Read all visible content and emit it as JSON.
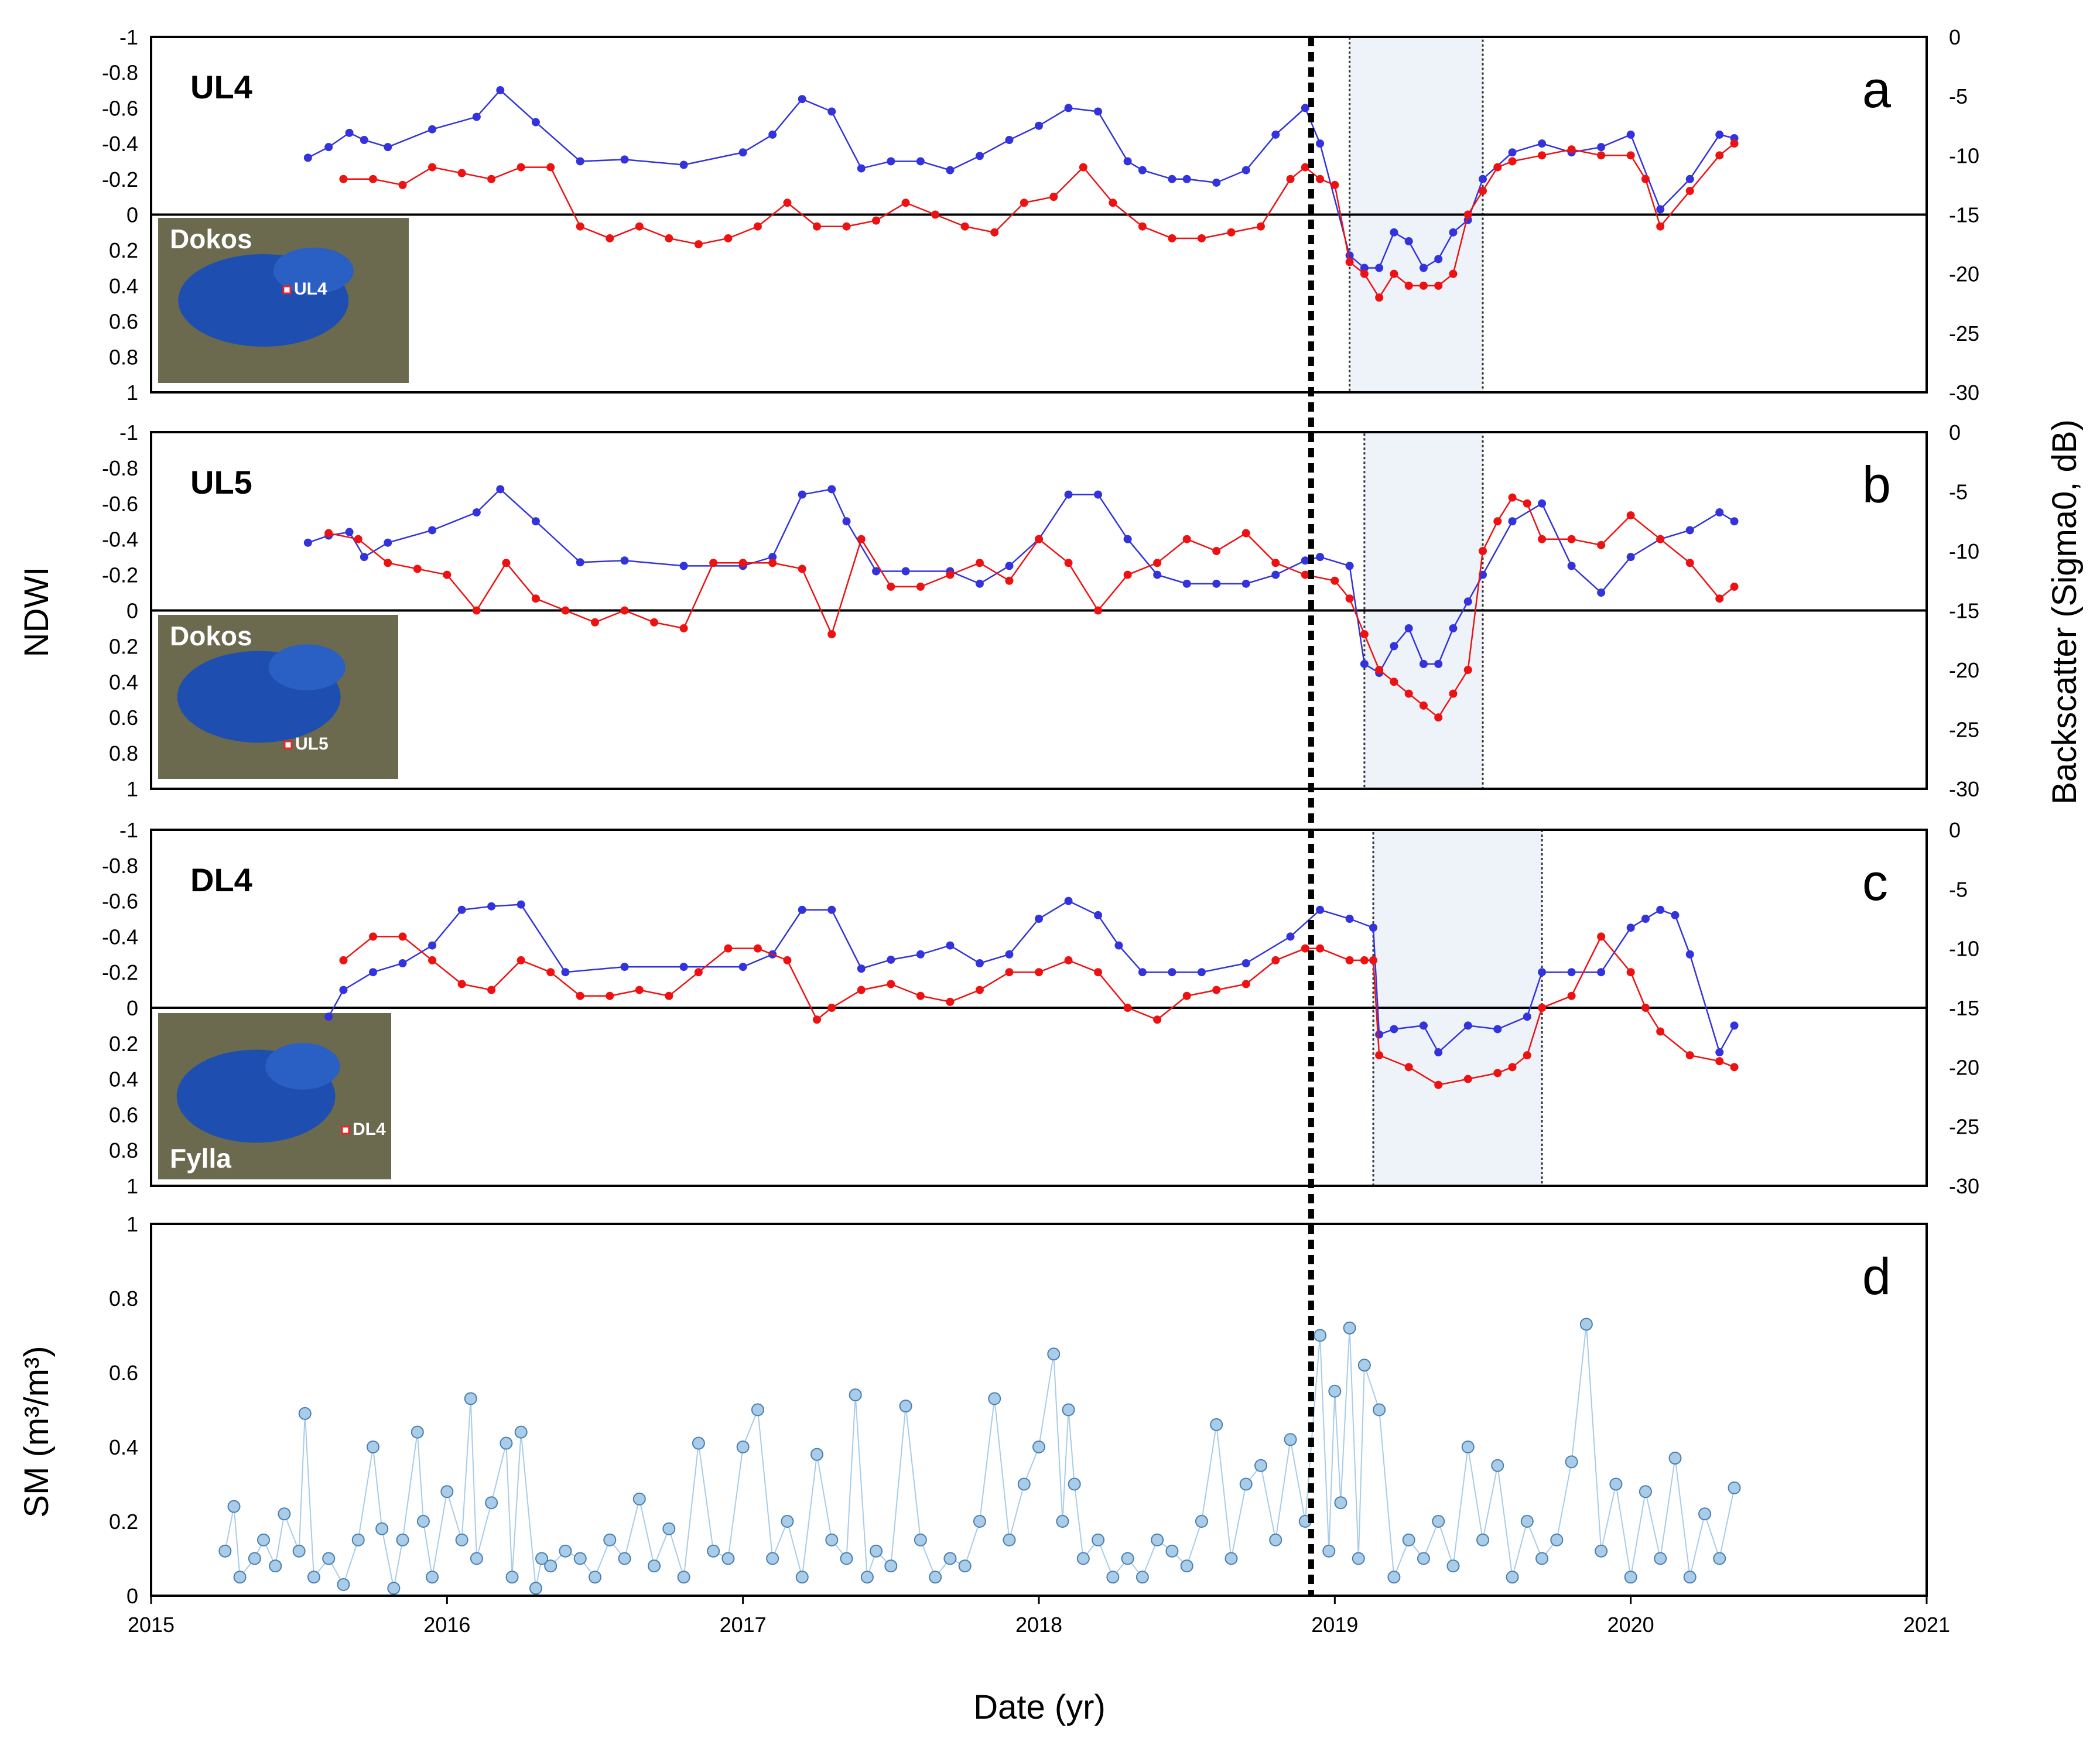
{
  "colors": {
    "ndwi": "#3333dd",
    "backscatter": "#ee1111",
    "sm": "#a9cce8",
    "sm_edge": "#4a7fb0",
    "shade": "#eef3f9"
  },
  "chart_data": [
    {
      "type": "line",
      "panel": "a",
      "site_label": "UL4",
      "inset_label": "Dokos",
      "inset_point": "UL4",
      "ylabel": "NDWI",
      "ylim_inverted": [
        -1,
        1
      ],
      "y2label": "Backscatter (Sigma0, dB)",
      "y2lim": [
        -30,
        0
      ],
      "yticks": [
        "-1",
        "-0.8",
        "-0.6",
        "-0.4",
        "-0.2",
        "0",
        "0.2",
        "0.4",
        "0.6",
        "0.8",
        "1"
      ],
      "y2ticks": [
        "0",
        "-5",
        "-10",
        "-15",
        "-20",
        "-25",
        "-30"
      ],
      "xlim": [
        2015,
        2021
      ],
      "shaded_period": [
        2019.05,
        2019.5
      ],
      "series": [
        {
          "name": "NDWI",
          "axis": "left",
          "x": [
            2015.53,
            2015.6,
            2015.67,
            2015.72,
            2015.8,
            2015.95,
            2016.1,
            2016.18,
            2016.3,
            2016.45,
            2016.6,
            2016.8,
            2017.0,
            2017.1,
            2017.2,
            2017.3,
            2017.4,
            2017.5,
            2017.6,
            2017.7,
            2017.8,
            2017.9,
            2018.0,
            2018.1,
            2018.2,
            2018.3,
            2018.35,
            2018.45,
            2018.5,
            2018.6,
            2018.7,
            2018.8,
            2018.9,
            2018.95,
            2019.05,
            2019.1,
            2019.15,
            2019.2,
            2019.25,
            2019.3,
            2019.35,
            2019.4,
            2019.45,
            2019.5,
            2019.6,
            2019.7,
            2019.8,
            2019.9,
            2020.0,
            2020.1,
            2020.2,
            2020.3,
            2020.35
          ],
          "y": [
            -0.32,
            -0.38,
            -0.46,
            -0.42,
            -0.38,
            -0.48,
            -0.55,
            -0.7,
            -0.52,
            -0.3,
            -0.31,
            -0.28,
            -0.35,
            -0.45,
            -0.65,
            -0.58,
            -0.26,
            -0.3,
            -0.3,
            -0.25,
            -0.33,
            -0.42,
            -0.5,
            -0.6,
            -0.58,
            -0.3,
            -0.25,
            -0.2,
            -0.2,
            -0.18,
            -0.25,
            -0.45,
            -0.6,
            -0.4,
            0.23,
            0.3,
            0.3,
            0.1,
            0.15,
            0.3,
            0.25,
            0.1,
            0.03,
            -0.2,
            -0.35,
            -0.4,
            -0.35,
            -0.38,
            -0.45,
            -0.03,
            -0.2,
            -0.45,
            -0.43
          ]
        },
        {
          "name": "Backscatter",
          "axis": "right",
          "x": [
            2015.65,
            2015.75,
            2015.85,
            2015.95,
            2016.05,
            2016.15,
            2016.25,
            2016.35,
            2016.45,
            2016.55,
            2016.65,
            2016.75,
            2016.85,
            2016.95,
            2017.05,
            2017.15,
            2017.25,
            2017.35,
            2017.45,
            2017.55,
            2017.65,
            2017.75,
            2017.85,
            2017.95,
            2018.05,
            2018.15,
            2018.25,
            2018.35,
            2018.45,
            2018.55,
            2018.65,
            2018.75,
            2018.85,
            2018.9,
            2018.95,
            2019.0,
            2019.05,
            2019.1,
            2019.15,
            2019.2,
            2019.25,
            2019.3,
            2019.35,
            2019.4,
            2019.45,
            2019.5,
            2019.55,
            2019.6,
            2019.7,
            2019.8,
            2019.9,
            2020.0,
            2020.05,
            2020.1,
            2020.2,
            2020.3,
            2020.35
          ],
          "y": [
            -12,
            -12,
            -12.5,
            -11,
            -11.5,
            -12,
            -11,
            -11,
            -16,
            -17,
            -16,
            -17,
            -17.5,
            -17,
            -16,
            -14,
            -16,
            -16,
            -15.5,
            -14,
            -15,
            -16,
            -16.5,
            -14,
            -13.5,
            -11,
            -14,
            -16,
            -17,
            -17,
            -16.5,
            -16,
            -12,
            -11,
            -12,
            -12.5,
            -19,
            -20,
            -22,
            -20,
            -21,
            -21,
            -21,
            -20,
            -15,
            -13,
            -11,
            -10.5,
            -10,
            -9.5,
            -10,
            -10,
            -12,
            -16,
            -13,
            -10,
            -9
          ]
        }
      ]
    },
    {
      "type": "line",
      "panel": "b",
      "site_label": "UL5",
      "inset_label": "Dokos",
      "inset_point": "UL5",
      "ylabel": "NDWI",
      "ylim_inverted": [
        -1,
        1
      ],
      "y2lim": [
        -30,
        0
      ],
      "yticks": [
        "-1",
        "-0.8",
        "-0.6",
        "-0.4",
        "-0.2",
        "0",
        "0.2",
        "0.4",
        "0.6",
        "0.8",
        "1"
      ],
      "y2ticks": [
        "0",
        "-5",
        "-10",
        "-15",
        "-20",
        "-25",
        "-30"
      ],
      "xlim": [
        2015,
        2021
      ],
      "shaded_period": [
        2019.1,
        2019.5
      ],
      "series": [
        {
          "name": "NDWI",
          "axis": "left",
          "x": [
            2015.53,
            2015.6,
            2015.67,
            2015.72,
            2015.8,
            2015.95,
            2016.1,
            2016.18,
            2016.3,
            2016.45,
            2016.6,
            2016.8,
            2017.0,
            2017.1,
            2017.2,
            2017.3,
            2017.35,
            2017.45,
            2017.55,
            2017.7,
            2017.8,
            2017.9,
            2018.0,
            2018.1,
            2018.2,
            2018.3,
            2018.4,
            2018.5,
            2018.6,
            2018.7,
            2018.8,
            2018.9,
            2018.95,
            2019.05,
            2019.1,
            2019.15,
            2019.2,
            2019.25,
            2019.3,
            2019.35,
            2019.4,
            2019.45,
            2019.5,
            2019.6,
            2019.7,
            2019.8,
            2019.9,
            2020.0,
            2020.1,
            2020.2,
            2020.3,
            2020.35
          ],
          "y": [
            -0.38,
            -0.42,
            -0.44,
            -0.3,
            -0.38,
            -0.45,
            -0.55,
            -0.68,
            -0.5,
            -0.27,
            -0.28,
            -0.25,
            -0.25,
            -0.3,
            -0.65,
            -0.68,
            -0.5,
            -0.22,
            -0.22,
            -0.22,
            -0.15,
            -0.25,
            -0.4,
            -0.65,
            -0.65,
            -0.4,
            -0.2,
            -0.15,
            -0.15,
            -0.15,
            -0.2,
            -0.28,
            -0.3,
            -0.25,
            0.3,
            0.35,
            0.2,
            0.1,
            0.3,
            0.3,
            0.1,
            -0.05,
            -0.2,
            -0.5,
            -0.6,
            -0.25,
            -0.1,
            -0.3,
            -0.4,
            -0.45,
            -0.55,
            -0.5
          ]
        },
        {
          "name": "Backscatter",
          "axis": "right",
          "x": [
            2015.6,
            2015.7,
            2015.8,
            2015.9,
            2016.0,
            2016.1,
            2016.2,
            2016.3,
            2016.4,
            2016.5,
            2016.6,
            2016.7,
            2016.8,
            2016.9,
            2017.0,
            2017.1,
            2017.2,
            2017.3,
            2017.4,
            2017.5,
            2017.6,
            2017.7,
            2017.8,
            2017.9,
            2018.0,
            2018.1,
            2018.2,
            2018.3,
            2018.4,
            2018.5,
            2018.6,
            2018.7,
            2018.8,
            2018.9,
            2019.0,
            2019.05,
            2019.1,
            2019.15,
            2019.2,
            2019.25,
            2019.3,
            2019.35,
            2019.4,
            2019.45,
            2019.5,
            2019.55,
            2019.6,
            2019.65,
            2019.7,
            2019.8,
            2019.9,
            2020.0,
            2020.1,
            2020.2,
            2020.3,
            2020.35
          ],
          "y": [
            -8.5,
            -9,
            -11,
            -11.5,
            -12,
            -15,
            -11,
            -14,
            -15,
            -16,
            -15,
            -16,
            -16.5,
            -11,
            -11,
            -11,
            -11.5,
            -17,
            -9,
            -13,
            -13,
            -12,
            -11,
            -12.5,
            -9,
            -11,
            -15,
            -12,
            -11,
            -9,
            -10,
            -8.5,
            -11,
            -12,
            -12.5,
            -14,
            -17,
            -20,
            -21,
            -22,
            -23,
            -24,
            -22,
            -20,
            -10,
            -7.5,
            -5.5,
            -6,
            -9,
            -9,
            -9.5,
            -7,
            -9,
            -11,
            -14,
            -13
          ]
        }
      ]
    },
    {
      "type": "line",
      "panel": "c",
      "site_label": "DL4",
      "inset_label": "Fylla",
      "inset_point": "DL4",
      "ylabel": "NDWI",
      "ylim_inverted": [
        -1,
        1
      ],
      "y2lim": [
        -30,
        0
      ],
      "yticks": [
        "-1",
        "-0.8",
        "-0.6",
        "-0.4",
        "-0.2",
        "0",
        "0.2",
        "0.4",
        "0.6",
        "0.8",
        "1"
      ],
      "y2ticks": [
        "0",
        "-5",
        "-10",
        "-15",
        "-20",
        "-25",
        "-30"
      ],
      "xlim": [
        2015,
        2021
      ],
      "shaded_period": [
        2019.13,
        2019.7
      ],
      "series": [
        {
          "name": "NDWI",
          "axis": "left",
          "x": [
            2015.6,
            2015.65,
            2015.75,
            2015.85,
            2015.95,
            2016.05,
            2016.15,
            2016.25,
            2016.4,
            2016.6,
            2016.8,
            2017.0,
            2017.1,
            2017.2,
            2017.3,
            2017.4,
            2017.5,
            2017.6,
            2017.7,
            2017.8,
            2017.9,
            2018.0,
            2018.1,
            2018.2,
            2018.27,
            2018.35,
            2018.45,
            2018.55,
            2018.7,
            2018.85,
            2018.95,
            2019.05,
            2019.13,
            2019.15,
            2019.2,
            2019.3,
            2019.35,
            2019.45,
            2019.55,
            2019.65,
            2019.7,
            2019.8,
            2019.9,
            2020.0,
            2020.05,
            2020.1,
            2020.15,
            2020.2,
            2020.3,
            2020.35
          ],
          "y": [
            0.05,
            -0.1,
            -0.2,
            -0.25,
            -0.35,
            -0.55,
            -0.57,
            -0.58,
            -0.2,
            -0.23,
            -0.23,
            -0.23,
            -0.3,
            -0.55,
            -0.55,
            -0.22,
            -0.27,
            -0.3,
            -0.35,
            -0.25,
            -0.3,
            -0.5,
            -0.6,
            -0.52,
            -0.35,
            -0.2,
            -0.2,
            -0.2,
            -0.25,
            -0.4,
            -0.55,
            -0.5,
            -0.45,
            0.15,
            0.12,
            0.1,
            0.25,
            0.1,
            0.12,
            0.05,
            -0.2,
            -0.2,
            -0.2,
            -0.45,
            -0.5,
            -0.55,
            -0.52,
            -0.3,
            0.25,
            0.1
          ]
        },
        {
          "name": "Backscatter",
          "axis": "right",
          "x": [
            2015.65,
            2015.75,
            2015.85,
            2015.95,
            2016.05,
            2016.15,
            2016.25,
            2016.35,
            2016.45,
            2016.55,
            2016.65,
            2016.75,
            2016.85,
            2016.95,
            2017.05,
            2017.15,
            2017.25,
            2017.3,
            2017.4,
            2017.5,
            2017.6,
            2017.7,
            2017.8,
            2017.9,
            2018.0,
            2018.1,
            2018.2,
            2018.3,
            2018.4,
            2018.5,
            2018.6,
            2018.7,
            2018.8,
            2018.9,
            2018.95,
            2019.05,
            2019.1,
            2019.13,
            2019.15,
            2019.25,
            2019.35,
            2019.45,
            2019.55,
            2019.6,
            2019.65,
            2019.7,
            2019.8,
            2019.9,
            2020.0,
            2020.05,
            2020.1,
            2020.2,
            2020.3,
            2020.35
          ],
          "y": [
            -11,
            -9,
            -9,
            -11,
            -13,
            -13.5,
            -11,
            -12,
            -14,
            -14,
            -13.5,
            -14,
            -12,
            -10,
            -10,
            -11,
            -16,
            -15,
            -13.5,
            -13,
            -14,
            -14.5,
            -13.5,
            -12,
            -12,
            -11,
            -12,
            -15,
            -16,
            -14,
            -13.5,
            -13,
            -11,
            -10,
            -10,
            -11,
            -11,
            -11,
            -19,
            -20,
            -21.5,
            -21,
            -20.5,
            -20,
            -19,
            -15,
            -14,
            -9,
            -12,
            -15,
            -17,
            -19,
            -19.5,
            -20
          ]
        }
      ]
    },
    {
      "type": "scatter",
      "panel": "d",
      "ylabel": "SM (m³/m³)",
      "xlabel": "Date (yr)",
      "ylim": [
        0,
        1
      ],
      "yticks": [
        "0",
        "0.2",
        "0.4",
        "0.6",
        "0.8",
        "1"
      ],
      "xlim": [
        2015,
        2021
      ],
      "xticks": [
        "2015",
        "2016",
        "2017",
        "2018",
        "2019",
        "2020",
        "2021"
      ],
      "x": [
        2015.25,
        2015.28,
        2015.3,
        2015.35,
        2015.38,
        2015.42,
        2015.45,
        2015.5,
        2015.52,
        2015.55,
        2015.6,
        2015.65,
        2015.7,
        2015.75,
        2015.78,
        2015.82,
        2015.85,
        2015.9,
        2015.92,
        2015.95,
        2016.0,
        2016.05,
        2016.08,
        2016.1,
        2016.15,
        2016.2,
        2016.22,
        2016.25,
        2016.3,
        2016.32,
        2016.35,
        2016.4,
        2016.45,
        2016.5,
        2016.55,
        2016.6,
        2016.65,
        2016.7,
        2016.75,
        2016.8,
        2016.85,
        2016.9,
        2016.95,
        2017.0,
        2017.05,
        2017.1,
        2017.15,
        2017.2,
        2017.25,
        2017.3,
        2017.35,
        2017.38,
        2017.42,
        2017.45,
        2017.5,
        2017.55,
        2017.6,
        2017.65,
        2017.7,
        2017.75,
        2017.8,
        2017.85,
        2017.9,
        2017.95,
        2018.0,
        2018.05,
        2018.08,
        2018.1,
        2018.12,
        2018.15,
        2018.2,
        2018.25,
        2018.3,
        2018.35,
        2018.4,
        2018.45,
        2018.5,
        2018.55,
        2018.6,
        2018.65,
        2018.7,
        2018.75,
        2018.8,
        2018.85,
        2018.9,
        2018.95,
        2018.98,
        2019.0,
        2019.02,
        2019.05,
        2019.08,
        2019.1,
        2019.15,
        2019.2,
        2019.25,
        2019.3,
        2019.35,
        2019.4,
        2019.45,
        2019.5,
        2019.55,
        2019.6,
        2019.65,
        2019.7,
        2019.75,
        2019.8,
        2019.85,
        2019.9,
        2019.95,
        2020.0,
        2020.05,
        2020.1,
        2020.15,
        2020.2,
        2020.25,
        2020.3,
        2020.35
      ],
      "y": [
        0.12,
        0.24,
        0.05,
        0.1,
        0.15,
        0.08,
        0.22,
        0.12,
        0.49,
        0.05,
        0.1,
        0.03,
        0.15,
        0.4,
        0.18,
        0.02,
        0.15,
        0.44,
        0.2,
        0.05,
        0.28,
        0.15,
        0.53,
        0.1,
        0.25,
        0.41,
        0.05,
        0.44,
        0.02,
        0.1,
        0.08,
        0.12,
        0.1,
        0.05,
        0.15,
        0.1,
        0.26,
        0.08,
        0.18,
        0.05,
        0.41,
        0.12,
        0.1,
        0.4,
        0.5,
        0.1,
        0.2,
        0.05,
        0.38,
        0.15,
        0.1,
        0.54,
        0.05,
        0.12,
        0.08,
        0.51,
        0.15,
        0.05,
        0.1,
        0.08,
        0.2,
        0.53,
        0.15,
        0.3,
        0.4,
        0.65,
        0.2,
        0.5,
        0.3,
        0.1,
        0.15,
        0.05,
        0.1,
        0.05,
        0.15,
        0.12,
        0.08,
        0.2,
        0.46,
        0.1,
        0.3,
        0.35,
        0.15,
        0.42,
        0.2,
        0.7,
        0.12,
        0.55,
        0.25,
        0.72,
        0.1,
        0.62,
        0.5,
        0.05,
        0.15,
        0.1,
        0.2,
        0.08,
        0.4,
        0.15,
        0.35,
        0.05,
        0.2,
        0.1,
        0.15,
        0.36,
        0.73,
        0.12,
        0.3,
        0.05,
        0.28,
        0.1,
        0.37,
        0.05,
        0.22,
        0.1,
        0.29
      ]
    }
  ],
  "reference_date": 2018.92
}
